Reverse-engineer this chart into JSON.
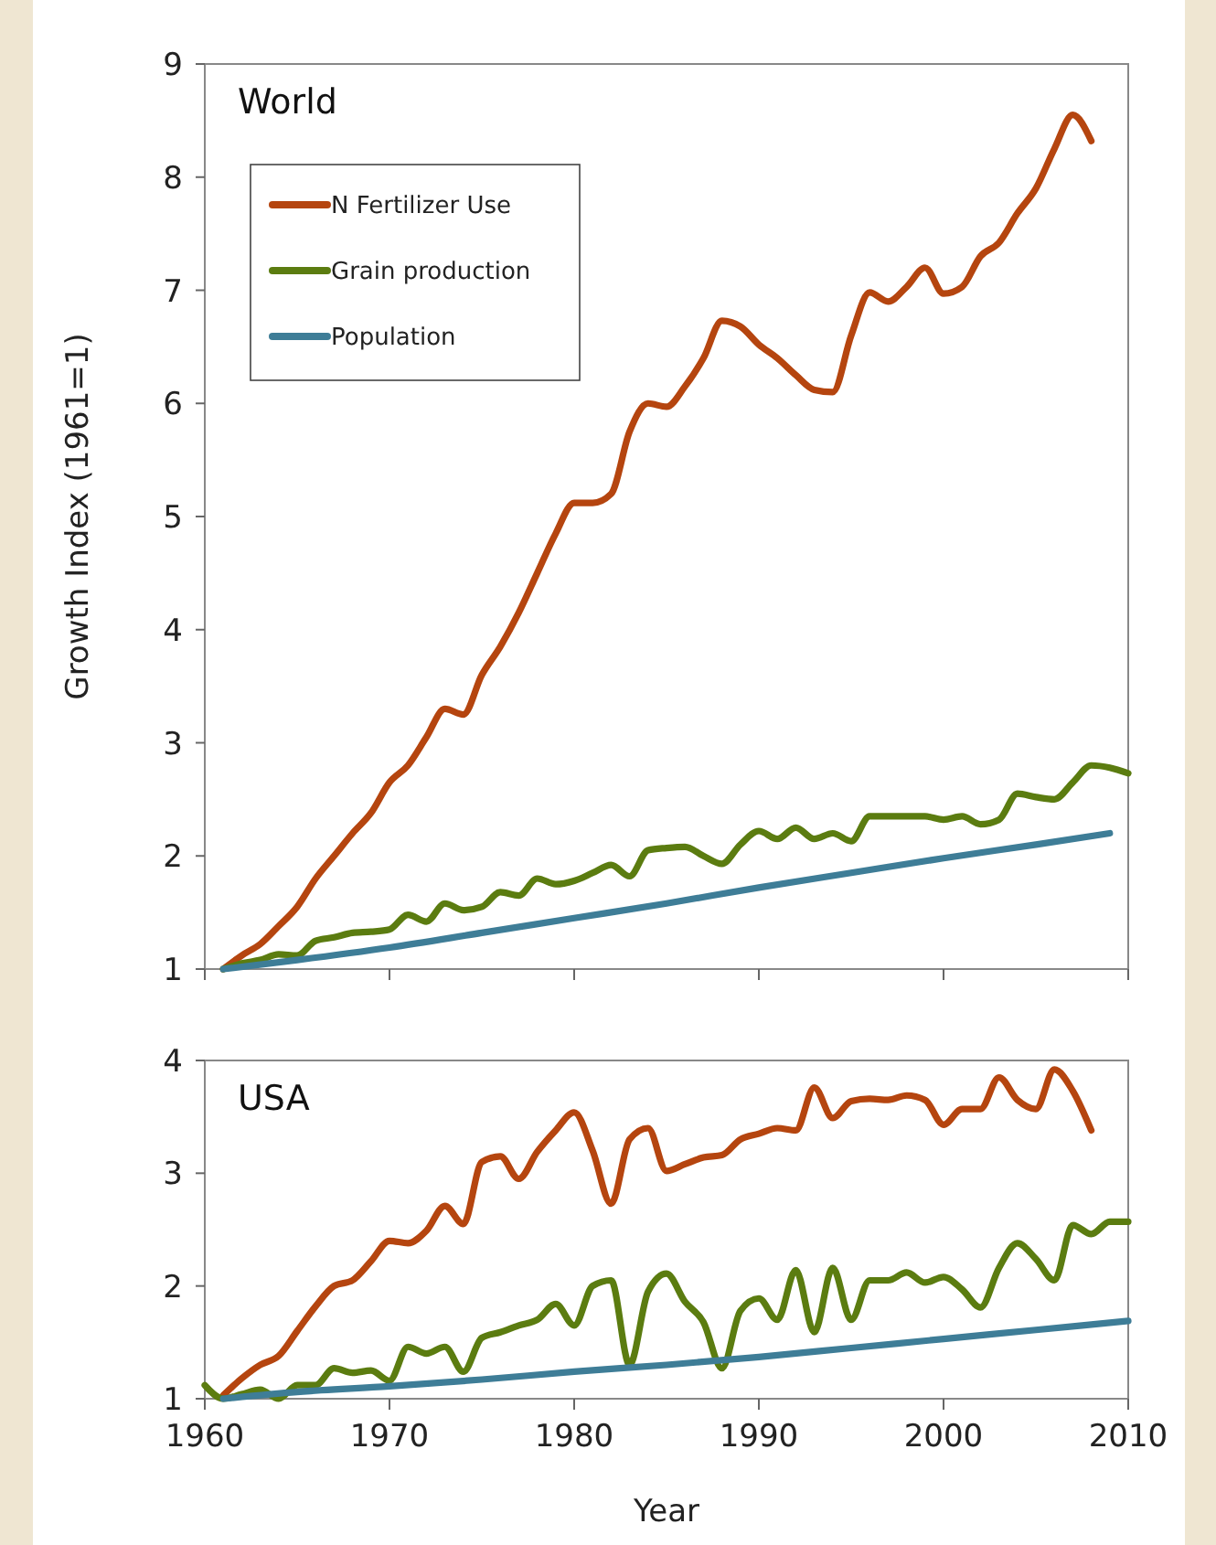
{
  "chart_data": [
    {
      "type": "line",
      "title": "World",
      "ylabel": "Growth Index (1961=1)",
      "xlim": [
        1960,
        2010
      ],
      "xticks": [
        1960,
        1970,
        1980,
        1990,
        2000,
        2010
      ],
      "ylim": [
        1,
        9
      ],
      "yticks": [
        1,
        2,
        3,
        4,
        5,
        6,
        7,
        8,
        9
      ],
      "tick_labels": "y",
      "legend": "top left",
      "grid": false,
      "marker": "none",
      "line_style": "solid",
      "series": [
        {
          "name": "N Fertilizer Use",
          "color": "#b5450f",
          "x": [
            1961,
            1962,
            1963,
            1964,
            1965,
            1966,
            1967,
            1968,
            1969,
            1970,
            1971,
            1972,
            1973,
            1974,
            1975,
            1976,
            1977,
            1978,
            1979,
            1980,
            1981,
            1982,
            1983,
            1984,
            1985,
            1986,
            1987,
            1988,
            1989,
            1990,
            1991,
            1992,
            1993,
            1994,
            1995,
            1996,
            1997,
            1998,
            1999,
            2000,
            2001,
            2002,
            2003,
            2004,
            2005,
            2006,
            2007,
            2008
          ],
          "values": [
            1.0,
            1.12,
            1.22,
            1.38,
            1.55,
            1.8,
            2.0,
            2.2,
            2.38,
            2.65,
            2.8,
            3.05,
            3.3,
            3.25,
            3.6,
            3.85,
            4.15,
            4.5,
            4.85,
            5.12,
            5.12,
            5.2,
            5.75,
            6.0,
            5.97,
            6.15,
            6.4,
            6.73,
            6.68,
            6.52,
            6.4,
            6.25,
            6.12,
            6.1,
            6.6,
            6.98,
            6.9,
            7.03,
            7.2,
            6.97,
            7.03,
            7.3,
            7.42,
            7.68,
            7.9,
            8.25,
            8.55,
            8.32
          ]
        },
        {
          "name": "Grain production",
          "color": "#5b7c10",
          "x": [
            1961,
            1962,
            1963,
            1964,
            1965,
            1966,
            1967,
            1968,
            1969,
            1970,
            1971,
            1972,
            1973,
            1974,
            1975,
            1976,
            1977,
            1978,
            1979,
            1980,
            1981,
            1982,
            1983,
            1984,
            1985,
            1986,
            1987,
            1988,
            1989,
            1990,
            1991,
            1992,
            1993,
            1994,
            1995,
            1996,
            1997,
            1998,
            1999,
            2000,
            2001,
            2002,
            2003,
            2004,
            2005,
            2006,
            2007,
            2008,
            2009,
            2010
          ],
          "values": [
            1.0,
            1.05,
            1.08,
            1.13,
            1.12,
            1.25,
            1.28,
            1.32,
            1.33,
            1.35,
            1.48,
            1.42,
            1.58,
            1.52,
            1.55,
            1.68,
            1.65,
            1.8,
            1.75,
            1.78,
            1.85,
            1.92,
            1.82,
            2.05,
            2.07,
            2.08,
            2.0,
            1.93,
            2.1,
            2.22,
            2.15,
            2.25,
            2.15,
            2.2,
            2.13,
            2.35,
            2.35,
            2.35,
            2.35,
            2.32,
            2.35,
            2.28,
            2.32,
            2.55,
            2.52,
            2.5,
            2.65,
            2.8,
            2.78,
            2.73
          ]
        },
        {
          "name": "Population",
          "color": "#3e7d97",
          "x": [
            1961,
            1965,
            1970,
            1975,
            1980,
            1985,
            1990,
            1995,
            2000,
            2005,
            2009
          ],
          "values": [
            1.0,
            1.08,
            1.19,
            1.32,
            1.45,
            1.58,
            1.72,
            1.85,
            1.98,
            2.1,
            2.2
          ]
        }
      ]
    },
    {
      "type": "line",
      "title": "USA",
      "xlabel": "Year",
      "xlim": [
        1960,
        2010
      ],
      "xticks": [
        1960,
        1970,
        1980,
        1990,
        2000,
        2010
      ],
      "ylim": [
        1,
        4
      ],
      "yticks": [
        1,
        2,
        3,
        4
      ],
      "legend": false,
      "grid": false,
      "marker": "none",
      "line_style": "solid",
      "series": [
        {
          "color": "#b5450f",
          "x": [
            1961,
            1962,
            1963,
            1964,
            1965,
            1966,
            1967,
            1968,
            1969,
            1970,
            1971,
            1972,
            1973,
            1974,
            1975,
            1976,
            1977,
            1978,
            1979,
            1980,
            1981,
            1982,
            1983,
            1984,
            1985,
            1986,
            1987,
            1988,
            1989,
            1990,
            1991,
            1992,
            1993,
            1994,
            1995,
            1996,
            1997,
            1998,
            1999,
            2000,
            2001,
            2002,
            2003,
            2004,
            2005,
            2006,
            2007,
            2008
          ],
          "values": [
            1.03,
            1.18,
            1.3,
            1.38,
            1.6,
            1.82,
            2.0,
            2.05,
            2.22,
            2.4,
            2.38,
            2.49,
            2.71,
            2.55,
            3.1,
            3.15,
            2.95,
            3.19,
            3.38,
            3.54,
            3.2,
            2.73,
            3.3,
            3.4,
            3.02,
            3.08,
            3.14,
            3.16,
            3.3,
            3.35,
            3.4,
            3.38,
            3.76,
            3.49,
            3.64,
            3.66,
            3.65,
            3.69,
            3.65,
            3.43,
            3.57,
            3.57,
            3.85,
            3.65,
            3.57,
            3.92,
            3.73,
            3.38
          ]
        },
        {
          "color": "#5b7c10",
          "x": [
            1960,
            1961,
            1962,
            1963,
            1964,
            1965,
            1966,
            1967,
            1968,
            1969,
            1970,
            1971,
            1972,
            1973,
            1974,
            1975,
            1976,
            1977,
            1978,
            1979,
            1980,
            1981,
            1982,
            1983,
            1984,
            1985,
            1986,
            1987,
            1988,
            1989,
            1990,
            1991,
            1992,
            1993,
            1994,
            1995,
            1996,
            1997,
            1998,
            1999,
            2000,
            2001,
            2002,
            2003,
            2004,
            2005,
            2006,
            2007,
            2008,
            2009,
            2010
          ],
          "values": [
            1.12,
            1.0,
            1.04,
            1.08,
            1.0,
            1.12,
            1.12,
            1.27,
            1.23,
            1.25,
            1.16,
            1.46,
            1.4,
            1.46,
            1.24,
            1.54,
            1.59,
            1.65,
            1.7,
            1.84,
            1.65,
            2.0,
            2.05,
            1.3,
            1.95,
            2.11,
            1.86,
            1.68,
            1.27,
            1.78,
            1.89,
            1.7,
            2.14,
            1.59,
            2.16,
            1.7,
            2.05,
            2.05,
            2.12,
            2.03,
            2.08,
            1.97,
            1.81,
            2.16,
            2.38,
            2.24,
            2.05,
            2.54,
            2.46,
            2.57,
            2.57
          ]
        },
        {
          "color": "#3e7d97",
          "x": [
            1961,
            1965,
            1970,
            1975,
            1980,
            1985,
            1990,
            1995,
            2000,
            2005,
            2010
          ],
          "values": [
            1.0,
            1.06,
            1.11,
            1.17,
            1.24,
            1.3,
            1.37,
            1.45,
            1.53,
            1.61,
            1.69
          ]
        }
      ]
    }
  ]
}
